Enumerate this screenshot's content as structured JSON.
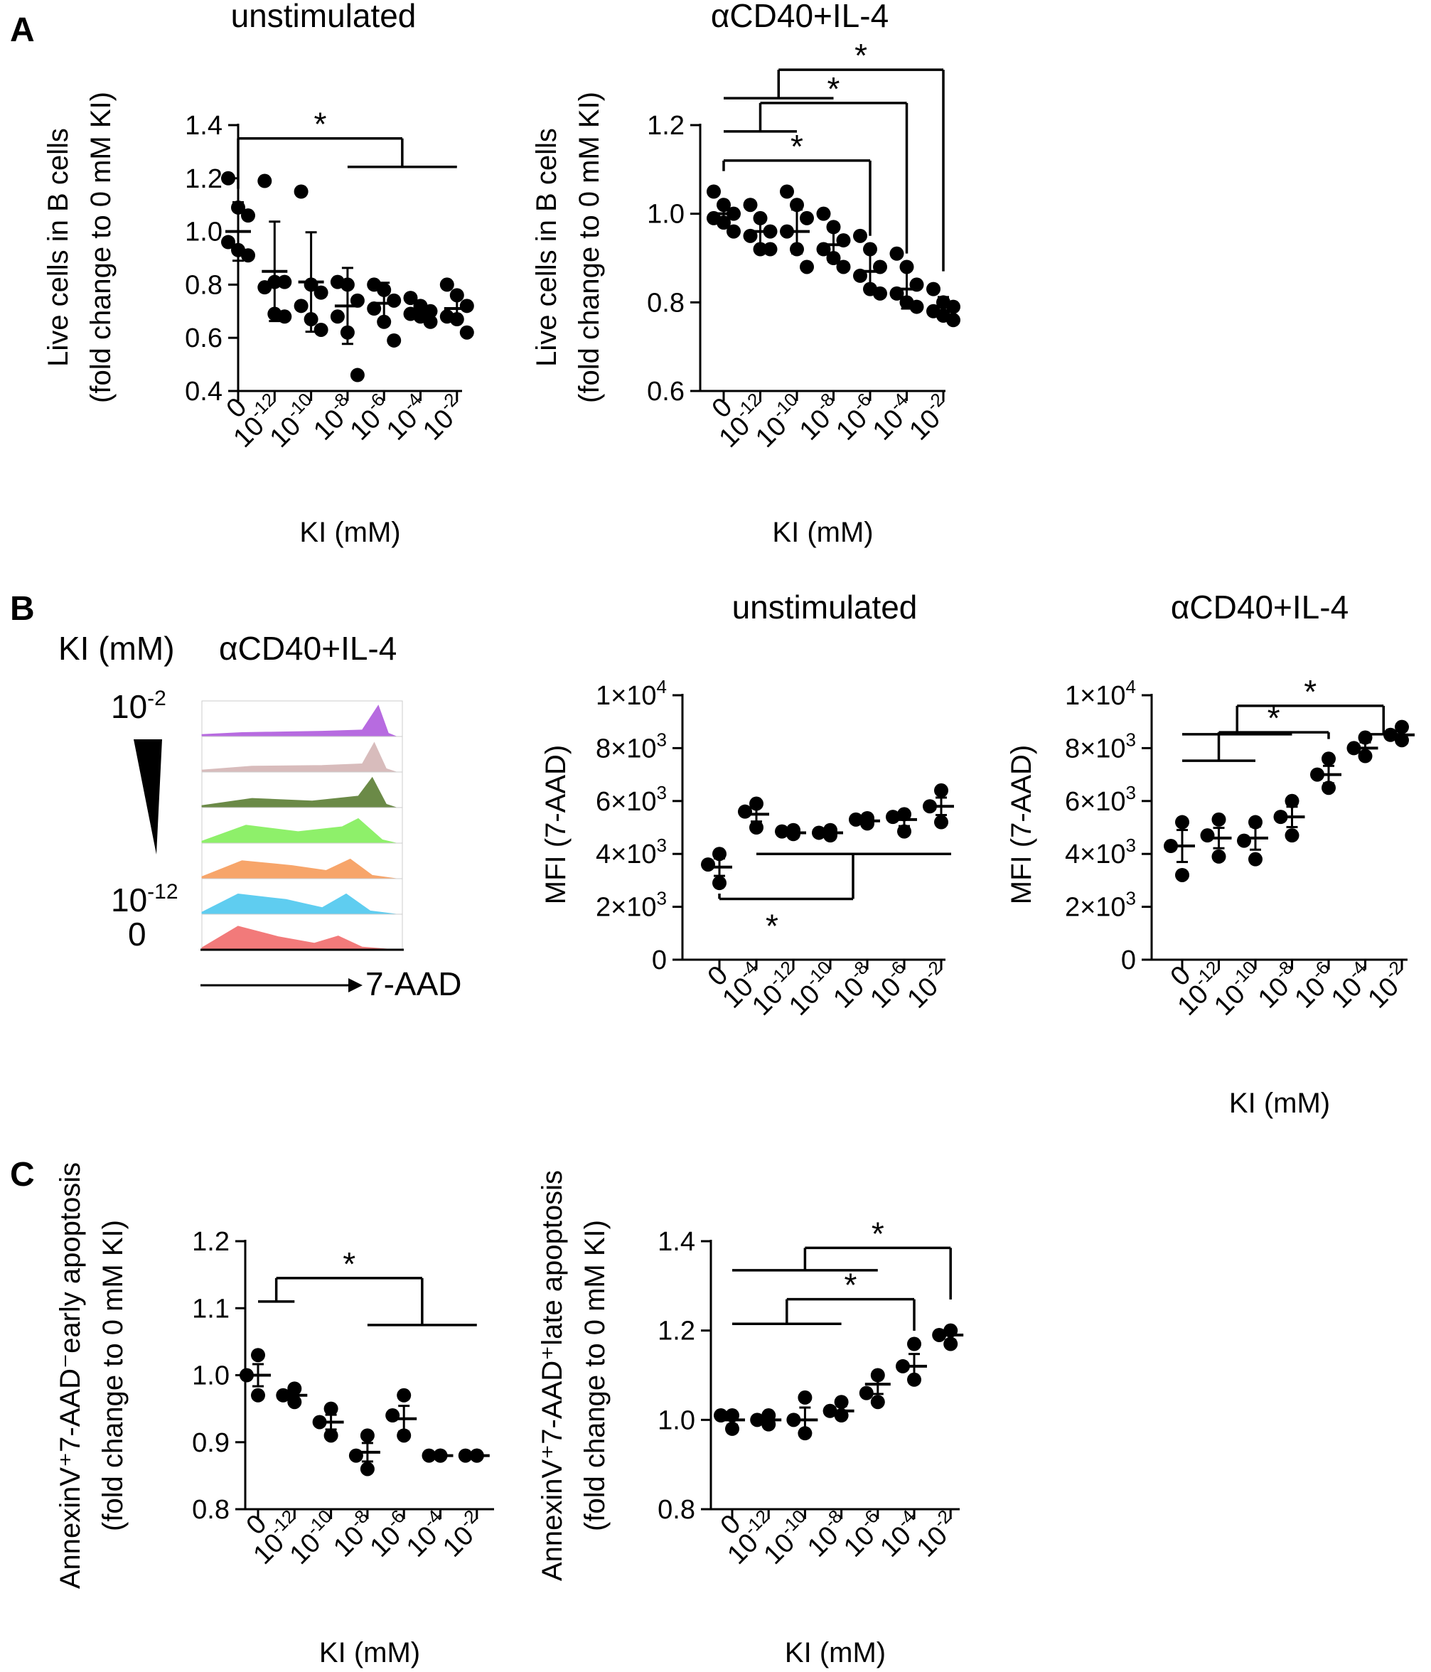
{
  "figure": {
    "panel_letters": [
      "A",
      "B",
      "C"
    ],
    "histogram": {
      "ylabel": "KI (mM)",
      "title": "αCD40+IL-4",
      "xlabel": "7-AAD",
      "top_label": {
        "base": "10",
        "exp": "-2"
      },
      "bottom_label": {
        "base": "10",
        "exp": "-12"
      },
      "zero_label": "0",
      "track_colors": [
        "#b76be0",
        "#d8bcbc",
        "#6b8a47",
        "#8ef06a",
        "#f7a56a",
        "#5fcdf0",
        "#f27a7a"
      ]
    }
  },
  "chart_data": [
    {
      "id": "A1",
      "type": "scatter",
      "panel": "A",
      "title": "unstimulated",
      "ylabel": [
        "Live cells in B cells",
        "(fold change to 0 mM KI)"
      ],
      "xlabel": "KI (mM)",
      "categories": [
        "0",
        "10-12",
        "10-10",
        "10-8",
        "10-6",
        "10-4",
        "10-2"
      ],
      "ylim": [
        0.4,
        1.4
      ],
      "yticks": [
        "0.4",
        "0.6",
        "0.8",
        "1.0",
        "1.2",
        "1.4"
      ],
      "means": [
        1.0,
        0.85,
        0.81,
        0.72,
        0.73,
        0.7,
        0.71
      ],
      "points": [
        [
          1.2,
          1.09,
          1.06,
          0.96,
          0.93,
          0.91
        ],
        [
          1.19,
          0.81,
          0.81,
          0.79,
          0.69,
          0.68
        ],
        [
          1.15,
          0.8,
          0.77,
          0.72,
          0.67,
          0.63
        ],
        [
          0.81,
          0.8,
          0.74,
          0.68,
          0.62,
          0.46
        ],
        [
          0.8,
          0.78,
          0.74,
          0.71,
          0.66,
          0.59
        ],
        [
          0.75,
          0.72,
          0.7,
          0.69,
          0.68,
          0.66
        ],
        [
          0.8,
          0.76,
          0.72,
          0.68,
          0.67,
          0.62
        ]
      ],
      "brackets": [
        {
          "left": [
            0
          ],
          "right": [
            3,
            4,
            5,
            6
          ],
          "y": 1.35,
          "label": "*"
        }
      ]
    },
    {
      "id": "A2",
      "type": "scatter",
      "panel": "A",
      "title": "αCD40+IL-4",
      "ylabel": [
        "Live cells in B cells",
        "(fold change to 0 mM KI)"
      ],
      "xlabel": "KI (mM)",
      "categories": [
        "0",
        "10-12",
        "10-10",
        "10-8",
        "10-6",
        "10-4",
        "10-2"
      ],
      "ylim": [
        0.6,
        1.2
      ],
      "yticks": [
        "0.6",
        "0.8",
        "1.0",
        "1.2"
      ],
      "means": [
        1.0,
        0.96,
        0.96,
        0.93,
        0.87,
        0.83,
        0.79
      ],
      "points": [
        [
          1.05,
          1.02,
          1.0,
          0.99,
          0.98,
          0.96
        ],
        [
          1.02,
          0.99,
          0.96,
          0.95,
          0.92,
          0.92
        ],
        [
          1.05,
          1.02,
          0.99,
          0.96,
          0.92,
          0.88
        ],
        [
          1.0,
          0.97,
          0.94,
          0.92,
          0.9,
          0.88
        ],
        [
          0.95,
          0.92,
          0.88,
          0.86,
          0.83,
          0.82
        ],
        [
          0.91,
          0.88,
          0.84,
          0.82,
          0.8,
          0.79
        ],
        [
          0.83,
          0.8,
          0.79,
          0.78,
          0.77,
          0.76
        ]
      ],
      "brackets": [
        {
          "left": [
            0,
            1,
            2,
            3
          ],
          "right": [
            6
          ],
          "y": 1.325,
          "label": "*"
        },
        {
          "left": [
            0,
            1,
            2
          ],
          "right": [
            5
          ],
          "y": 1.25,
          "label": "*"
        },
        {
          "left": [
            0
          ],
          "right": [
            4
          ],
          "y": 1.12,
          "label": "*"
        }
      ]
    },
    {
      "id": "B1",
      "type": "scatter",
      "panel": "B",
      "title": "unstimulated",
      "ylabel": [
        "MFI (7-AAD)"
      ],
      "xlabel": "",
      "categories": [
        "0",
        "10-4",
        "10-12",
        "10-10",
        "10-8",
        "10-6",
        "10-2"
      ],
      "ylim": [
        0,
        10000
      ],
      "yticks": [
        {
          "text": "0"
        },
        {
          "base": "2×10",
          "exp": "3"
        },
        {
          "base": "4×10",
          "exp": "3"
        },
        {
          "base": "6×10",
          "exp": "3"
        },
        {
          "base": "8×10",
          "exp": "3"
        },
        {
          "base": "1×10",
          "exp": "4"
        }
      ],
      "means": [
        3500,
        5500,
        4800,
        4800,
        5250,
        5300,
        5800
      ],
      "points": [
        [
          4000,
          3600,
          2900
        ],
        [
          5900,
          5600,
          5000
        ],
        [
          4900,
          4850,
          4750
        ],
        [
          4900,
          4800,
          4700
        ],
        [
          5350,
          5300,
          5150
        ],
        [
          5500,
          5400,
          4850
        ],
        [
          6400,
          5800,
          5200
        ]
      ],
      "brackets": [
        {
          "left": [
            0
          ],
          "right": [
            1,
            2,
            3,
            4,
            5,
            6
          ],
          "y": 2300,
          "y_right": 4000,
          "label": "*",
          "below": true
        }
      ]
    },
    {
      "id": "B2",
      "type": "scatter",
      "panel": "B",
      "title": "αCD40+IL-4",
      "ylabel": [
        "MFI (7-AAD)"
      ],
      "xlabel": "KI (mM)",
      "categories": [
        "0",
        "10-12",
        "10-10",
        "10-8",
        "10-6",
        "10-4",
        "10-2"
      ],
      "ylim": [
        0,
        10000
      ],
      "yticks": [
        {
          "text": "0"
        },
        {
          "base": "2×10",
          "exp": "3"
        },
        {
          "base": "4×10",
          "exp": "3"
        },
        {
          "base": "6×10",
          "exp": "3"
        },
        {
          "base": "8×10",
          "exp": "3"
        },
        {
          "base": "1×10",
          "exp": "4"
        }
      ],
      "means": [
        4300,
        4600,
        4600,
        5400,
        7000,
        8000,
        8500
      ],
      "points": [
        [
          5200,
          4300,
          3200
        ],
        [
          5300,
          4700,
          3900
        ],
        [
          5200,
          4500,
          3800
        ],
        [
          6000,
          5400,
          4700
        ],
        [
          7600,
          7000,
          6500
        ],
        [
          8400,
          8000,
          7700
        ],
        [
          8800,
          8500,
          8300
        ]
      ],
      "brackets": [
        {
          "left": [
            0,
            1,
            2,
            3
          ],
          "right": [
            5,
            6
          ],
          "y": 9600,
          "label": "*"
        },
        {
          "left": [
            0,
            1,
            2
          ],
          "right": [
            4
          ],
          "y": 8600,
          "label": "*"
        }
      ]
    },
    {
      "id": "C1",
      "type": "scatter",
      "panel": "C",
      "title": "",
      "ylabel": [
        "AnnexinV⁺7-AAD⁻early apoptosis",
        "(fold change to 0 mM KI)"
      ],
      "xlabel": "KI (mM)",
      "categories": [
        "0",
        "10-12",
        "10-10",
        "10-8",
        "10-6",
        "10-4",
        "10-2"
      ],
      "ylim": [
        0.8,
        1.2
      ],
      "yticks": [
        "0.8",
        "0.9",
        "1.0",
        "1.1",
        "1.2"
      ],
      "means": [
        1.0,
        0.97,
        0.93,
        0.885,
        0.935,
        0.88,
        0.88
      ],
      "points": [
        [
          1.03,
          1.0,
          0.97
        ],
        [
          0.98,
          0.97,
          0.96
        ],
        [
          0.95,
          0.93,
          0.91
        ],
        [
          0.91,
          0.88,
          0.86
        ],
        [
          0.97,
          0.94,
          0.91
        ],
        [
          0.88,
          0.88,
          0.88
        ],
        [
          0.88,
          0.88,
          0.88
        ]
      ],
      "brackets": [
        {
          "left": [
            0,
            1
          ],
          "right": [
            3,
            4,
            5,
            6
          ],
          "y": 1.145,
          "y_left": 1.11,
          "y_right": 1.075,
          "label": "*"
        }
      ]
    },
    {
      "id": "C2",
      "type": "scatter",
      "panel": "C",
      "title": "",
      "ylabel": [
        "AnnexinV⁺7-AAD⁺late apoptosis",
        "(fold change to 0 mM KI)"
      ],
      "xlabel": "KI (mM)",
      "categories": [
        "0",
        "10-12",
        "10-10",
        "10-8",
        "10-6",
        "10-4",
        "10-2"
      ],
      "ylim": [
        0.8,
        1.4
      ],
      "yticks": [
        "0.8",
        "1.0",
        "1.2",
        "1.4"
      ],
      "means": [
        1.0,
        1.0,
        1.0,
        1.02,
        1.08,
        1.12,
        1.19
      ],
      "points": [
        [
          1.01,
          1.01,
          0.98
        ],
        [
          1.01,
          1.0,
          0.99
        ],
        [
          1.05,
          1.0,
          0.97
        ],
        [
          1.04,
          1.02,
          1.01
        ],
        [
          1.1,
          1.06,
          1.04
        ],
        [
          1.17,
          1.12,
          1.09
        ],
        [
          1.2,
          1.19,
          1.17
        ]
      ],
      "brackets": [
        {
          "left": [
            0,
            1,
            2,
            3,
            4
          ],
          "right": [
            6
          ],
          "y": 1.385,
          "y_left": 1.335,
          "label": "*"
        },
        {
          "left": [
            0,
            1,
            2,
            3
          ],
          "right": [
            5
          ],
          "y": 1.27,
          "y_left": 1.215,
          "label": "*"
        }
      ]
    }
  ]
}
